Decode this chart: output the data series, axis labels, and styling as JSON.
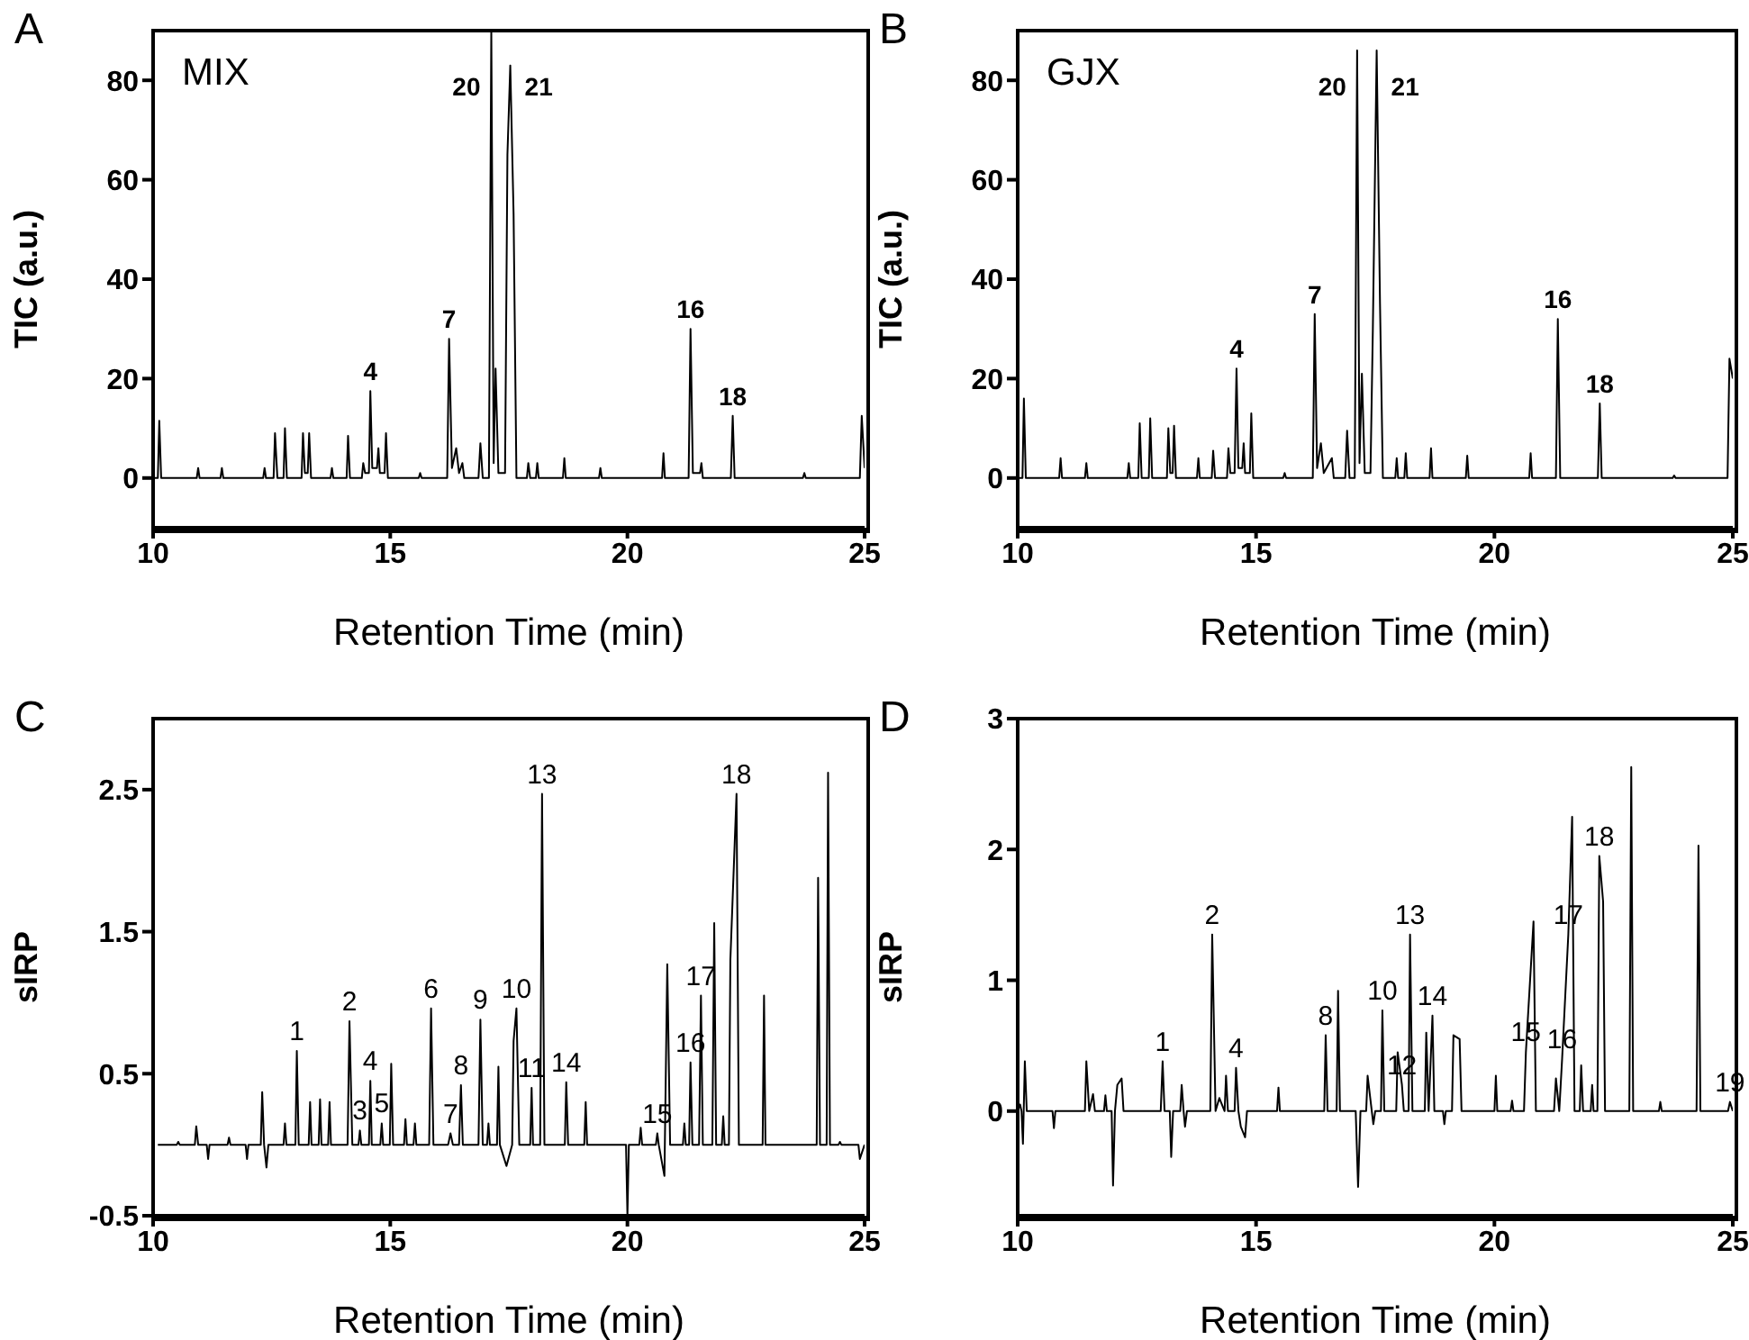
{
  "chart_data": [
    {
      "type": "line",
      "title": "A",
      "xlabel": "Retention Time (min)",
      "ylabel": "TIC (a.u.)",
      "xlim": [
        10,
        25
      ],
      "xticks": [
        10,
        15,
        20,
        25
      ],
      "ylim": [
        -10,
        90
      ],
      "yticks": [
        0,
        20,
        40,
        60,
        80
      ],
      "marker": "none",
      "line_style": "solid",
      "color": "#000000",
      "x": [
        10,
        10.1,
        10.13,
        10.17,
        10.92,
        10.95,
        10.98,
        11.42,
        11.45,
        11.48,
        12.32,
        12.35,
        12.38,
        12.54,
        12.57,
        12.62,
        12.75,
        12.78,
        12.82,
        13.13,
        13.16,
        13.2,
        13.26,
        13.29,
        13.33,
        13.74,
        13.77,
        13.8,
        14.08,
        14.11,
        14.15,
        14.4,
        14.43,
        14.47,
        14.55,
        14.58,
        14.62,
        14.72,
        14.75,
        14.78,
        14.88,
        14.91,
        14.95,
        15.6,
        15.63,
        15.66,
        16.2,
        16.24,
        16.3,
        16.39,
        16.45,
        16.52,
        16.56,
        16.86,
        16.9,
        16.95,
        17.08,
        17.13,
        17.18,
        17.22,
        17.28,
        17.42,
        17.47,
        17.53,
        17.6,
        17.66,
        17.88,
        17.91,
        17.95,
        18.07,
        18.1,
        18.13,
        18.64,
        18.67,
        18.7,
        19.4,
        19.43,
        19.46,
        20.73,
        20.76,
        20.79,
        21.29,
        21.33,
        21.38,
        21.53,
        21.56,
        21.59,
        22.18,
        22.22,
        22.26,
        23.7,
        23.73,
        23.76,
        24.9,
        24.94,
        25
      ],
      "values": [
        0,
        0,
        11.5,
        0,
        0,
        2,
        0,
        0,
        2,
        0,
        0,
        2,
        0,
        0,
        9,
        0,
        0,
        10,
        0,
        0,
        9,
        1,
        1,
        9,
        0,
        0,
        2,
        0,
        0,
        8.5,
        0,
        0,
        3,
        1,
        1,
        17.5,
        2,
        2,
        6,
        1,
        1,
        9,
        0,
        0,
        1,
        0,
        0,
        28,
        2,
        6,
        1,
        3,
        0,
        0,
        7,
        0,
        0,
        90,
        3,
        22,
        1,
        1,
        65,
        83,
        53,
        0,
        0,
        3,
        0,
        0,
        3,
        0,
        0,
        4,
        0,
        0,
        2,
        0,
        0,
        5,
        0,
        0,
        30,
        1,
        1,
        3,
        0,
        0,
        12.5,
        0,
        0,
        1,
        0,
        0,
        12.5,
        2
      ],
      "annotations": [
        "MIX",
        {
          "text": "4",
          "x": 14.58,
          "y": 17.5
        },
        {
          "text": "7",
          "x": 16.24,
          "y": 28
        },
        {
          "text": "20",
          "x": 17.13,
          "y": 90
        },
        {
          "text": "21",
          "x": 17.53,
          "y": 83
        },
        {
          "text": "16",
          "x": 21.33,
          "y": 30
        },
        {
          "text": "18",
          "x": 22.22,
          "y": 12.5
        }
      ]
    },
    {
      "type": "line",
      "title": "B",
      "xlabel": "Retention Time (min)",
      "ylabel": "TIC (a.u.)",
      "xlim": [
        10,
        25
      ],
      "xticks": [
        10,
        15,
        20,
        25
      ],
      "ylim": [
        -10,
        90
      ],
      "yticks": [
        0,
        20,
        40,
        60,
        80
      ],
      "marker": "none",
      "line_style": "solid",
      "color": "#000000",
      "x": [
        10,
        10.1,
        10.13,
        10.17,
        10.87,
        10.9,
        10.93,
        11.41,
        11.44,
        11.47,
        12.3,
        12.33,
        12.36,
        12.53,
        12.56,
        12.6,
        12.75,
        12.78,
        12.82,
        13.13,
        13.16,
        13.2,
        13.25,
        13.28,
        13.32,
        13.76,
        13.79,
        13.82,
        14.07,
        14.1,
        14.14,
        14.39,
        14.42,
        14.46,
        14.55,
        14.59,
        14.63,
        14.71,
        14.74,
        14.77,
        14.87,
        14.9,
        14.94,
        15.57,
        15.6,
        15.63,
        16.19,
        16.23,
        16.28,
        16.36,
        16.42,
        16.59,
        16.63,
        16.87,
        16.91,
        16.96,
        17.07,
        17.12,
        17.17,
        17.22,
        17.28,
        17.4,
        17.45,
        17.53,
        17.6,
        17.66,
        17.92,
        17.95,
        17.98,
        18.11,
        18.14,
        18.17,
        18.64,
        18.67,
        18.7,
        19.4,
        19.43,
        19.46,
        20.73,
        20.76,
        20.79,
        21.29,
        21.33,
        21.38,
        22.17,
        22.21,
        22.25,
        23.74,
        23.77,
        23.8,
        24.89,
        24.93,
        25
      ],
      "values": [
        0,
        0,
        16,
        0,
        0,
        4,
        0,
        0,
        3,
        0,
        0,
        3,
        0,
        0,
        11,
        0,
        0,
        12,
        0,
        0,
        10,
        1,
        1,
        10.5,
        0,
        0,
        4,
        0,
        0,
        5.5,
        0,
        0,
        6,
        1,
        1,
        22,
        2,
        2,
        7,
        1,
        1,
        13,
        0,
        0,
        1,
        0,
        0,
        33,
        2,
        7,
        1,
        4,
        0,
        0,
        9.5,
        0,
        0,
        86,
        3,
        21,
        1,
        1,
        30,
        86,
        35,
        0,
        0,
        4,
        0,
        0,
        5,
        0,
        0,
        6,
        0,
        0,
        4.5,
        0,
        0,
        5,
        0,
        0,
        32,
        0,
        0,
        15,
        0,
        0,
        0.5,
        0,
        0,
        24,
        20
      ],
      "annotations": [
        "GJX",
        {
          "text": "4",
          "x": 14.59,
          "y": 22
        },
        {
          "text": "7",
          "x": 16.23,
          "y": 33
        },
        {
          "text": "20",
          "x": 17.12,
          "y": 86
        },
        {
          "text": "21",
          "x": 17.53,
          "y": 86
        },
        {
          "text": "16",
          "x": 21.33,
          "y": 32
        },
        {
          "text": "18",
          "x": 22.21,
          "y": 15
        }
      ]
    },
    {
      "type": "line",
      "title": "C",
      "xlabel": "Retention Time (min)",
      "ylabel": "sIRP",
      "xlim": [
        10,
        25
      ],
      "xticks": [
        10,
        15,
        20,
        25
      ],
      "ylim": [
        -0.5,
        3
      ],
      "yticks": [
        -0.5,
        0.5,
        1.5,
        2.5
      ],
      "marker": "none",
      "line_style": "solid",
      "color": "#000000",
      "x": [
        10.1,
        10.5,
        10.53,
        10.56,
        10.88,
        10.91,
        10.95,
        11.13,
        11.16,
        11.19,
        11.57,
        11.6,
        11.63,
        11.95,
        11.98,
        12.01,
        12.27,
        12.3,
        12.34,
        12.39,
        12.43,
        12.75,
        12.78,
        12.81,
        13.0,
        13.03,
        13.07,
        13.28,
        13.31,
        13.34,
        13.49,
        13.52,
        13.55,
        13.69,
        13.72,
        13.75,
        14.1,
        14.14,
        14.2,
        14.33,
        14.36,
        14.39,
        14.55,
        14.58,
        14.61,
        14.79,
        14.82,
        14.85,
        14.99,
        15.02,
        15.06,
        15.29,
        15.32,
        15.35,
        15.49,
        15.52,
        15.55,
        15.82,
        15.86,
        15.91,
        16.22,
        16.27,
        16.32,
        16.45,
        16.49,
        16.53,
        16.86,
        16.9,
        16.95,
        17.04,
        17.07,
        17.1,
        17.25,
        17.28,
        17.31,
        17.45,
        17.57,
        17.6,
        17.66,
        17.72,
        17.95,
        17.98,
        18.01,
        18.16,
        18.2,
        18.25,
        18.68,
        18.71,
        18.75,
        19.09,
        19.12,
        19.15,
        19.97,
        20.0,
        20.03,
        20.25,
        20.28,
        20.31,
        20.6,
        20.63,
        20.66,
        20.78,
        20.84,
        20.9,
        21.17,
        21.2,
        21.23,
        21.3,
        21.33,
        21.37,
        21.51,
        21.55,
        21.59,
        21.79,
        21.83,
        21.87,
        21.99,
        22.02,
        22.05,
        22.14,
        22.17,
        22.3,
        22.35,
        22.85,
        22.88,
        22.91,
        23.99,
        24.02,
        24.06,
        24.2,
        24.23,
        24.27,
        24.45,
        24.48,
        24.51,
        24.87,
        24.9,
        25
      ],
      "values": [
        0,
        0,
        0.02,
        0,
        0,
        0.13,
        0,
        0,
        -0.1,
        0,
        0,
        0.05,
        0,
        0,
        -0.1,
        0,
        0,
        0.37,
        0,
        -0.16,
        0,
        0,
        0.15,
        0,
        0,
        0.66,
        0,
        0,
        0.3,
        0,
        0,
        0.32,
        0,
        0,
        0.3,
        0,
        0,
        0.87,
        0,
        0,
        0.1,
        0,
        0,
        0.45,
        0,
        0,
        0.15,
        0,
        0,
        0.57,
        0,
        0,
        0.18,
        0,
        0,
        0.15,
        0,
        0,
        0.96,
        0,
        0,
        0.08,
        0,
        0,
        0.42,
        0,
        0,
        0.88,
        0,
        0,
        0.15,
        0,
        0,
        0.55,
        0,
        -0.15,
        0,
        0.73,
        0.96,
        0,
        0,
        0.4,
        0,
        0,
        2.47,
        0,
        0,
        0.44,
        0,
        0,
        0.3,
        0,
        0,
        -0.5,
        0,
        0,
        0.12,
        0,
        0,
        0.08,
        0,
        -0.22,
        1.27,
        0,
        0,
        0.15,
        0,
        0,
        0.58,
        0,
        0,
        1.05,
        0,
        0,
        1.56,
        0,
        0,
        0.2,
        0,
        0,
        1.3,
        2.47,
        0,
        0,
        1.05,
        0,
        0,
        1.88,
        0,
        0,
        2.62,
        0,
        0,
        0.02,
        0,
        0,
        -0.1,
        0
      ],
      "annotations": [
        {
          "text": "1",
          "x": 13.03,
          "y": 0.66
        },
        {
          "text": "2",
          "x": 14.14,
          "y": 0.87
        },
        {
          "text": "3",
          "x": 14.36,
          "y": 0.1
        },
        {
          "text": "4",
          "x": 14.58,
          "y": 0.45
        },
        {
          "text": "5",
          "x": 14.82,
          "y": 0.15
        },
        {
          "text": "6",
          "x": 15.86,
          "y": 0.96
        },
        {
          "text": "7",
          "x": 16.27,
          "y": 0.08
        },
        {
          "text": "8",
          "x": 16.49,
          "y": 0.42
        },
        {
          "text": "9",
          "x": 16.9,
          "y": 0.88
        },
        {
          "text": "10",
          "x": 17.66,
          "y": 0.96
        },
        {
          "text": "11",
          "x": 17.98,
          "y": 0.4
        },
        {
          "text": "13",
          "x": 18.2,
          "y": 2.47
        },
        {
          "text": "14",
          "x": 18.71,
          "y": 0.44
        },
        {
          "text": "15",
          "x": 20.63,
          "y": 0.08
        },
        {
          "text": "16",
          "x": 21.33,
          "y": 0.58
        },
        {
          "text": "17",
          "x": 21.55,
          "y": 1.05
        },
        {
          "text": "18",
          "x": 22.3,
          "y": 2.47
        }
      ]
    },
    {
      "type": "line",
      "title": "D",
      "xlabel": "Retention Time (min)",
      "ylabel": "sIRP",
      "xlim": [
        10,
        25
      ],
      "xticks": [
        10,
        15,
        20,
        25
      ],
      "ylim": [
        -0.8,
        3
      ],
      "yticks": [
        0,
        1,
        2,
        3
      ],
      "marker": "none",
      "line_style": "solid",
      "color": "#000000",
      "x": [
        10,
        10.05,
        10.08,
        10.11,
        10.15,
        10.19,
        10.73,
        10.76,
        10.79,
        11.41,
        11.44,
        11.5,
        11.58,
        11.62,
        11.81,
        11.84,
        11.87,
        11.97,
        12.0,
        12.04,
        12.09,
        12.18,
        12.22,
        13.0,
        13.04,
        13.08,
        13.19,
        13.22,
        13.26,
        13.41,
        13.44,
        13.48,
        13.51,
        13.55,
        14.04,
        14.08,
        14.15,
        14.23,
        14.34,
        14.37,
        14.41,
        14.55,
        14.58,
        14.63,
        14.68,
        14.77,
        14.81,
        15.44,
        15.47,
        15.5,
        16.43,
        16.46,
        16.5,
        16.69,
        16.72,
        16.76,
        17.09,
        17.14,
        17.19,
        17.31,
        17.34,
        17.46,
        17.5,
        17.62,
        17.65,
        17.69,
        17.94,
        17.97,
        18.06,
        18.1,
        18.2,
        18.23,
        18.28,
        18.54,
        18.57,
        18.62,
        18.7,
        18.74,
        18.92,
        18.95,
        18.98,
        19.11,
        19.14,
        19.27,
        19.31,
        20.0,
        20.03,
        20.06,
        20.34,
        20.37,
        20.4,
        20.62,
        20.66,
        20.82,
        20.87,
        21.25,
        21.29,
        21.36,
        21.42,
        21.55,
        21.63,
        21.68,
        21.79,
        21.82,
        21.86,
        22.02,
        22.05,
        22.08,
        22.16,
        22.2,
        22.28,
        22.32,
        22.83,
        22.87,
        22.91,
        23.45,
        23.48,
        23.51,
        24.24,
        24.28,
        24.32,
        24.9,
        24.94,
        25
      ],
      "values": [
        0,
        0.05,
        0,
        -0.25,
        0.38,
        0,
        0,
        -0.13,
        0,
        0,
        0.38,
        0,
        0.13,
        0,
        0,
        0.12,
        0,
        0,
        -0.57,
        0,
        0.2,
        0.25,
        0,
        0,
        0.38,
        0,
        0,
        -0.35,
        0,
        0,
        0.2,
        0,
        -0.12,
        0,
        0,
        1.35,
        0,
        0.1,
        0,
        0.27,
        0,
        0,
        0.33,
        0,
        -0.12,
        -0.2,
        0,
        0,
        0.18,
        0,
        0,
        0.58,
        0,
        0,
        0.92,
        0,
        0,
        -0.58,
        0,
        0,
        0.27,
        -0.1,
        0,
        0,
        0.77,
        0,
        0,
        0.45,
        0.2,
        0,
        0,
        1.35,
        0,
        0,
        0.6,
        0,
        0.73,
        0,
        0,
        -0.1,
        0,
        0,
        0.58,
        0.55,
        0,
        0,
        0.27,
        0,
        0,
        0.08,
        0,
        0,
        0.45,
        1.45,
        0,
        0,
        0.25,
        0,
        0.4,
        1.35,
        2.25,
        0,
        0,
        0.35,
        0,
        0,
        0.2,
        0,
        0,
        1.95,
        1.6,
        0,
        0,
        2.63,
        0,
        0,
        0.07,
        0,
        0,
        2.03,
        0,
        0,
        0.07,
        0
      ],
      "annotations": [
        {
          "text": "1",
          "x": 13.04,
          "y": 0.38
        },
        {
          "text": "2",
          "x": 14.08,
          "y": 1.35
        },
        {
          "text": "4",
          "x": 14.58,
          "y": 0.33
        },
        {
          "text": "8",
          "x": 16.46,
          "y": 0.58
        },
        {
          "text": "10",
          "x": 17.65,
          "y": 0.77
        },
        {
          "text": "12",
          "x": 18.06,
          "y": 0.2
        },
        {
          "text": "13",
          "x": 18.23,
          "y": 1.35
        },
        {
          "text": "14",
          "x": 18.7,
          "y": 0.73
        },
        {
          "text": "15",
          "x": 20.66,
          "y": 0.45
        },
        {
          "text": "16",
          "x": 21.42,
          "y": 0.4
        },
        {
          "text": "17",
          "x": 21.55,
          "y": 1.35
        },
        {
          "text": "18",
          "x": 22.2,
          "y": 1.95
        },
        {
          "text": "19",
          "x": 24.94,
          "y": 0.07
        }
      ]
    }
  ]
}
